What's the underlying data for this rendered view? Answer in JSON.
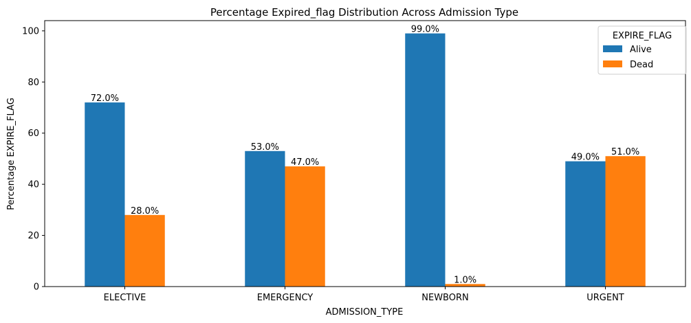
{
  "chart_data": {
    "type": "bar",
    "title": "Percentage Expired_flag Distribution Across Admission Type",
    "xlabel": "ADMISSION_TYPE",
    "ylabel": "Percentage EXPIRE_FLAG",
    "categories": [
      "ELECTIVE",
      "EMERGENCY",
      "NEWBORN",
      "URGENT"
    ],
    "series": [
      {
        "name": "Alive",
        "values": [
          72.0,
          53.0,
          99.0,
          49.0
        ],
        "color": "#1f77b4"
      },
      {
        "name": "Dead",
        "values": [
          28.0,
          47.0,
          1.0,
          51.0
        ],
        "color": "#ff7f0e"
      }
    ],
    "data_labels": [
      [
        "72.0%",
        "53.0%",
        "99.0%",
        "49.0%"
      ],
      [
        "28.0%",
        "47.0%",
        "1.0%",
        "51.0%"
      ]
    ],
    "yticks": [
      0,
      20,
      40,
      60,
      80,
      100
    ],
    "ylim": [
      0,
      104
    ],
    "legend": {
      "title": "EXPIRE_FLAG",
      "placement": "top-right"
    },
    "grid": false
  }
}
